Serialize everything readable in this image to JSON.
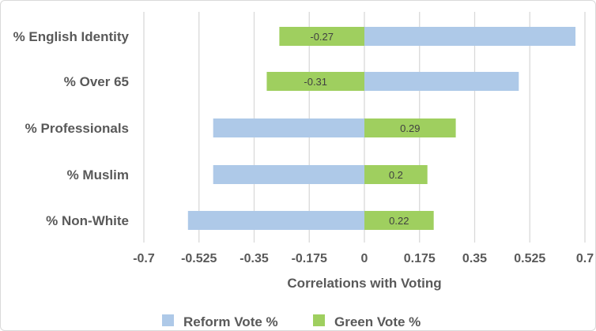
{
  "chart_data": {
    "type": "bar",
    "orientation": "horizontal",
    "categories": [
      "% English Identity",
      "% Over 65",
      "% Professionals",
      "% Muslim",
      "% Non-White"
    ],
    "series": [
      {
        "name": "Reform Vote %",
        "color": "#aec9e8",
        "values": [
          0.67,
          0.49,
          -0.48,
          -0.48,
          -0.56
        ],
        "data_labels": false
      },
      {
        "name": "Green Vote %",
        "color": "#9fcf5f",
        "values": [
          -0.27,
          -0.31,
          0.29,
          0.2,
          0.22
        ],
        "data_labels": true
      }
    ],
    "data_labels": [
      "-0.27",
      "-0.31",
      "0.29",
      "0.2",
      "0.22"
    ],
    "xlabel": "Correlations with Voting",
    "xlim": [
      -0.7,
      0.7
    ],
    "xticks": [
      "-0.7",
      "-0.525",
      "-0.35",
      "-0.175",
      "0",
      "0.175",
      "0.35",
      "0.525",
      "0.7"
    ],
    "grid": "vertical",
    "legend": "bottom"
  }
}
